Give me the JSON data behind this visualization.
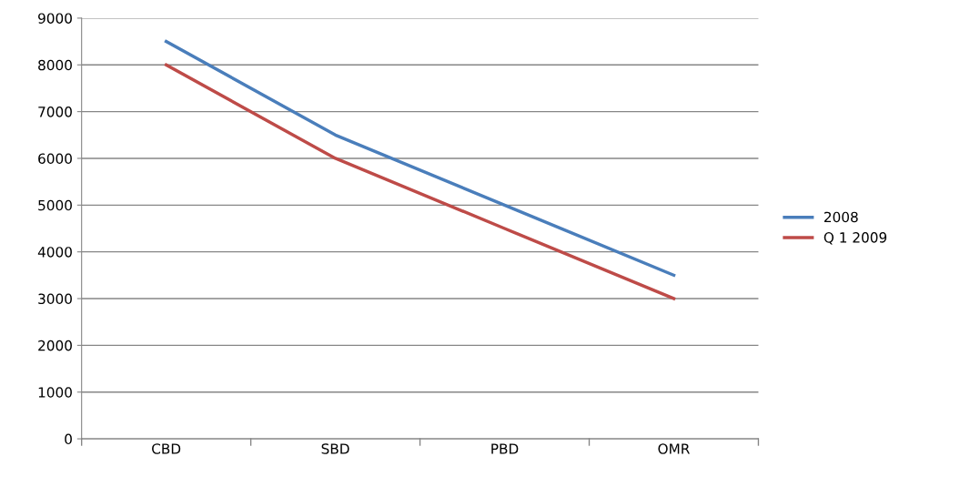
{
  "chart_data": {
    "type": "line",
    "categories": [
      "CBD",
      "SBD",
      "PBD",
      "OMR"
    ],
    "series": [
      {
        "name": "2008",
        "color": "#4a7ebb",
        "values": [
          8500,
          6500,
          5000,
          3500
        ]
      },
      {
        "name": "Q 1 2009",
        "color": "#be4b48",
        "values": [
          8000,
          6000,
          4500,
          3000
        ]
      }
    ],
    "ylim": [
      0,
      9000
    ],
    "yticks": [
      0,
      1000,
      2000,
      3000,
      4000,
      5000,
      6000,
      7000,
      8000,
      9000
    ],
    "grid": "y",
    "legend": "right",
    "marker": "none",
    "line_style": "solid"
  }
}
